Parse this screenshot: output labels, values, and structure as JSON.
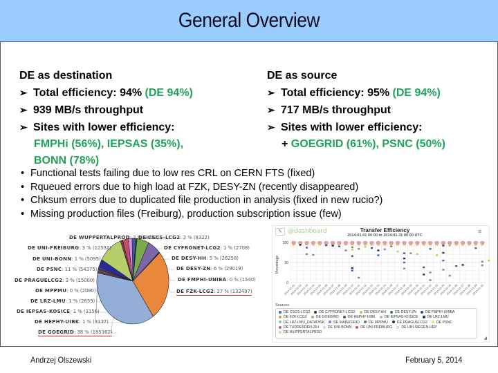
{
  "slide": {
    "title": "General Overview",
    "footer": {
      "author": "Andrzej Olszewski",
      "date": "February 5, 2014"
    }
  },
  "destination": {
    "heading": "DE as destination",
    "arrow_icon": "➢",
    "items": [
      {
        "text": "Total efficiency: 94% ",
        "highlight": "(DE 94%)"
      },
      {
        "text": "939 MB/s throughput",
        "highlight": ""
      },
      {
        "text": "Sites with lower efficiency:",
        "highlight": ""
      }
    ],
    "sites_line1": "FMPHi (56%), IEPSAS (35%),",
    "sites_line2": "BONN (78%)"
  },
  "source": {
    "heading": "DE as source",
    "arrow_icon": "➢",
    "items": [
      {
        "text": "Total efficiency: 95% ",
        "highlight": "(DE 94%)"
      },
      {
        "text": "717 MB/s throughput",
        "highlight": ""
      },
      {
        "text": "Sites with lower efficiency:",
        "highlight": ""
      }
    ],
    "sites_prefix": "+ ",
    "sites_line1": "GOEGRID (61%), PSNC (50%)"
  },
  "issues": [
    "Functional tests failing due to low res CRL on CERN FTS (fixed)",
    "Rqueued errors due to high load at FZK, DESY-ZN (recently disappeared)",
    "Chksum errors due to duplicated file production in analysis (fixed in new rucio?)",
    "Missing production files (Freiburg), production subscription issue (few)"
  ],
  "chart_data": [
    {
      "type": "pie",
      "title": "",
      "slices": [
        {
          "name": "DE CSCS-LCG2",
          "percent": 2,
          "value": 8322,
          "color": "#3d5a9e"
        },
        {
          "name": "DE CYFRONET-LCG2",
          "percent": 1,
          "value": 2708,
          "color": "#2e4a1a"
        },
        {
          "name": "DE DESY-HH",
          "percent": 5,
          "value": 26258,
          "color": "#7aaa4a"
        },
        {
          "name": "DE DESY-ZN",
          "percent": 6,
          "value": 29019,
          "color": "#7a66a8"
        },
        {
          "name": "DE FMPHI-UNIBA",
          "percent": 0,
          "value": 1540,
          "color": "#1a1a3a"
        },
        {
          "name": "DE FZK-LCG2",
          "percent": 27,
          "value": 132497,
          "color": "#e8883a"
        },
        {
          "name": "DE GOEGRID",
          "percent": 38,
          "value": 185362,
          "color": "#93afd8"
        },
        {
          "name": "DE HEPHY-UIBK",
          "percent": 1,
          "value": 3137,
          "color": "#5a5a5a"
        },
        {
          "name": "DE IEPSAS-KOSICE",
          "percent": 1,
          "value": 3156,
          "color": "#9a5050"
        },
        {
          "name": "DE LRZ-LMU",
          "percent": 1,
          "value": 2659,
          "color": "#3a3a8a"
        },
        {
          "name": "DE MPPMU",
          "percent": 0,
          "value": 2080,
          "color": "#707070"
        },
        {
          "name": "DE PRAGUELCG2",
          "percent": 3,
          "value": 15000,
          "color": "#2a2a9a"
        },
        {
          "name": "DE PSNC",
          "percent": 11,
          "value": 54375,
          "color": "#b5cf6b"
        },
        {
          "name": "DE UNI-BONN",
          "percent": 1,
          "value": 5095,
          "color": "#8a3a3a"
        },
        {
          "name": "DE UNI-FREIBURG",
          "percent": 3,
          "value": 12532,
          "color": "#c0506a"
        },
        {
          "name": "DE WUPPERTALPROD",
          "percent": 2,
          "value": 8283,
          "color": "#e090e8"
        }
      ],
      "highlighted": [
        "DE GOEGRID",
        "DE FZK-LCG2"
      ]
    },
    {
      "type": "scatter",
      "title": "Transfer Efficiency",
      "subtitle": "2014-01-01 00:00 to 2014-01-31 00:00 UTC",
      "xlabel": "",
      "ylabel": "Percentage",
      "ylim": [
        0,
        100
      ],
      "yticks": [
        0,
        50,
        100
      ],
      "categories": [
        "2014-01-01",
        "2014-01-02",
        "2014-01-03",
        "2014-01-04",
        "2014-01-05",
        "2014-01-06",
        "2014-01-07",
        "2014-01-08",
        "2014-01-09",
        "2014-01-10",
        "2014-01-11",
        "2014-01-12",
        "2014-01-13",
        "2014-01-14",
        "2014-01-15",
        "2014-01-16",
        "2014-01-17",
        "2014-01-18",
        "2014-01-19",
        "2014-01-20",
        "2014-01-21",
        "2014-01-22",
        "2014-01-23",
        "2014-01-24",
        "2014-01-25",
        "2014-01-26",
        "2014-01-27",
        "2014-01-28",
        "2014-01-29",
        "2014-01-30"
      ],
      "low_points": [
        [
          2,
          94
        ],
        [
          3,
          87
        ],
        [
          3,
          71
        ],
        [
          4,
          69
        ],
        [
          5,
          95
        ],
        [
          6,
          93
        ],
        [
          7,
          92
        ],
        [
          8,
          90
        ],
        [
          9,
          80
        ],
        [
          10,
          88
        ],
        [
          10,
          82
        ],
        [
          10,
          66
        ],
        [
          10,
          36
        ],
        [
          10,
          30
        ],
        [
          11,
          84
        ],
        [
          11,
          12
        ],
        [
          12,
          89
        ],
        [
          13,
          86
        ],
        [
          14,
          80
        ],
        [
          14,
          68
        ],
        [
          15,
          83
        ],
        [
          16,
          90
        ],
        [
          17,
          77
        ],
        [
          18,
          73
        ],
        [
          18,
          60
        ],
        [
          18,
          50
        ],
        [
          18,
          35
        ],
        [
          19,
          73
        ],
        [
          20,
          71
        ],
        [
          21,
          38
        ],
        [
          21,
          20
        ],
        [
          22,
          84
        ],
        [
          22,
          25
        ],
        [
          22,
          6
        ],
        [
          23,
          68
        ],
        [
          24,
          92
        ],
        [
          24,
          74
        ],
        [
          24,
          55
        ],
        [
          24,
          32
        ],
        [
          25,
          17
        ],
        [
          25,
          92
        ],
        [
          26,
          41
        ],
        [
          27,
          44
        ],
        [
          29,
          86
        ],
        [
          30,
          52
        ],
        [
          30,
          43
        ],
        [
          31,
          55
        ]
      ],
      "legend_title": "Sources",
      "legend": [
        {
          "name": "DE CSCS-LCG2",
          "color": "#2f6fb8"
        },
        {
          "name": "DE CYFRONET-LCG2",
          "color": "#333333"
        },
        {
          "name": "DE DESY-HH",
          "color": "#b8c454"
        },
        {
          "name": "DE DESY-ZN",
          "color": "#3a7a3a"
        },
        {
          "name": "DE FMPHI-UNIBA",
          "color": "#1e4f8f"
        },
        {
          "name": "DE FZK-LCG2",
          "color": "#d89a3a"
        },
        {
          "name": "DE GOEGRID",
          "color": "#9ab86a"
        },
        {
          "name": "DE HEPHY-UIBK",
          "color": "#505070"
        },
        {
          "name": "DE IEPSAS-KOSICE",
          "color": "#a0c0d0"
        },
        {
          "name": "DE LRZ-LMU",
          "color": "#1a2a5a"
        },
        {
          "name": "DE LRZ-LMU_DATADISK",
          "color": "#7fc8c0"
        },
        {
          "name": "DE MAINZGRID",
          "color": "#8a7ac0"
        },
        {
          "name": "DE MPPMU",
          "color": "#6a6a6a"
        },
        {
          "name": "DE PRAGUELCG2",
          "color": "#2a2a2a"
        },
        {
          "name": "DE PSNC",
          "color": "#e8d870"
        },
        {
          "name": "DE TUDRESDEN-ZIH",
          "color": "#b86a6a"
        },
        {
          "name": "DE UNI-BONN",
          "color": "#c0d8e8"
        },
        {
          "name": "DE UNI-FREIBURG",
          "color": "#c05070"
        },
        {
          "name": "DE UNI-SIEGEN-HEP",
          "color": "#ffffff"
        },
        {
          "name": "DE WUPPERTALPROD",
          "color": "#e8d0a0"
        }
      ]
    }
  ],
  "dashboard": {
    "logo_text": "@dashboard",
    "edit_icon": "✎",
    "menu_icon": "≡",
    "resize_icon": "◢"
  }
}
